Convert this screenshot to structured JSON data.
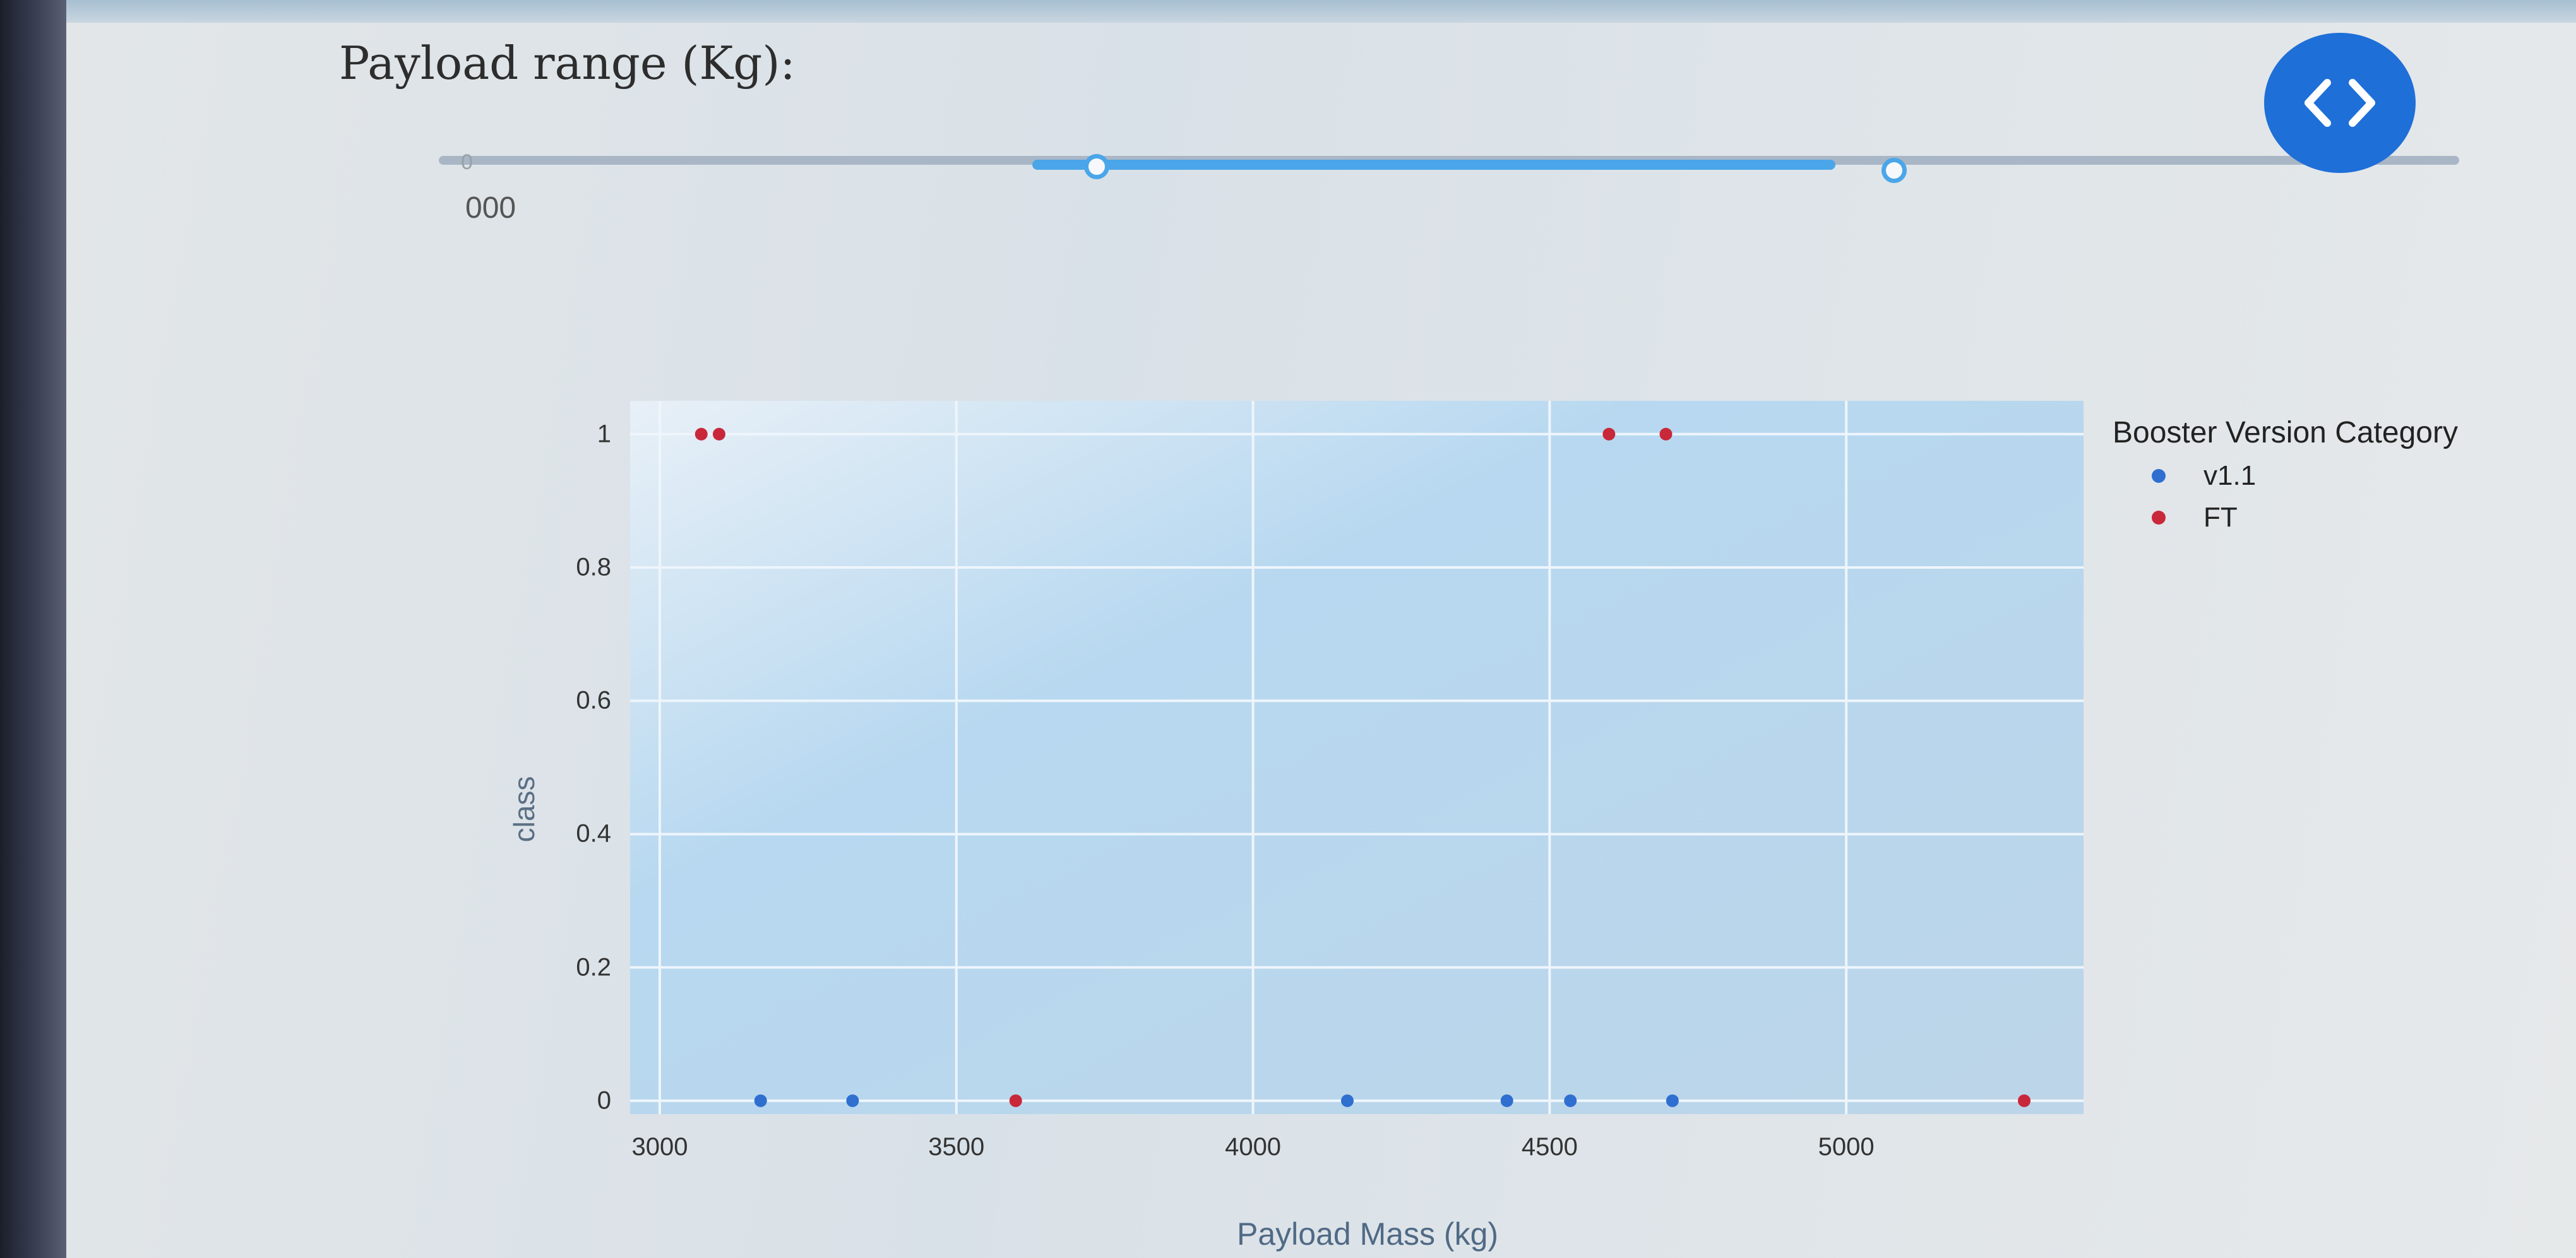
{
  "slider": {
    "title": "Payload range (Kg):",
    "min_value_label": "000",
    "start_mark": "0",
    "colors": {
      "track": "#a9b6c6",
      "range": "#4aa6e8",
      "handle_border": "#4aa6e8"
    }
  },
  "nav_button": {
    "icon": "chevron-left-right-icon",
    "color": "#1e6fd8"
  },
  "chart_data": {
    "type": "scatter",
    "xlabel": "Payload Mass (kg)",
    "ylabel": "class",
    "xlim": [
      2950,
      5400
    ],
    "ylim": [
      -0.02,
      1.05
    ],
    "xticks": [
      3000,
      3500,
      4000,
      4500,
      5000
    ],
    "xtick_labels": [
      "3000",
      "3500",
      "4000",
      "4500",
      "5000"
    ],
    "yticks": [
      0,
      0.2,
      0.4,
      0.6,
      0.8,
      1
    ],
    "ytick_labels": [
      "0",
      "0.2",
      "0.4",
      "0.6",
      "0.8",
      "1"
    ],
    "grid": true,
    "legend": {
      "title": "Booster Version Category",
      "placement": "right"
    },
    "series": [
      {
        "name": "v1.1",
        "color": "#2f6fd0",
        "points": [
          {
            "x": 3170,
            "y": 0
          },
          {
            "x": 3325,
            "y": 0
          },
          {
            "x": 4159,
            "y": 0
          },
          {
            "x": 4428,
            "y": 0
          },
          {
            "x": 4535,
            "y": 0
          },
          {
            "x": 4707,
            "y": 0
          }
        ]
      },
      {
        "name": "FT",
        "color": "#c8283a",
        "points": [
          {
            "x": 3070,
            "y": 1
          },
          {
            "x": 3100,
            "y": 1
          },
          {
            "x": 3600,
            "y": 0
          },
          {
            "x": 4600,
            "y": 1
          },
          {
            "x": 4696,
            "y": 1
          },
          {
            "x": 5300,
            "y": 0
          }
        ]
      }
    ]
  }
}
